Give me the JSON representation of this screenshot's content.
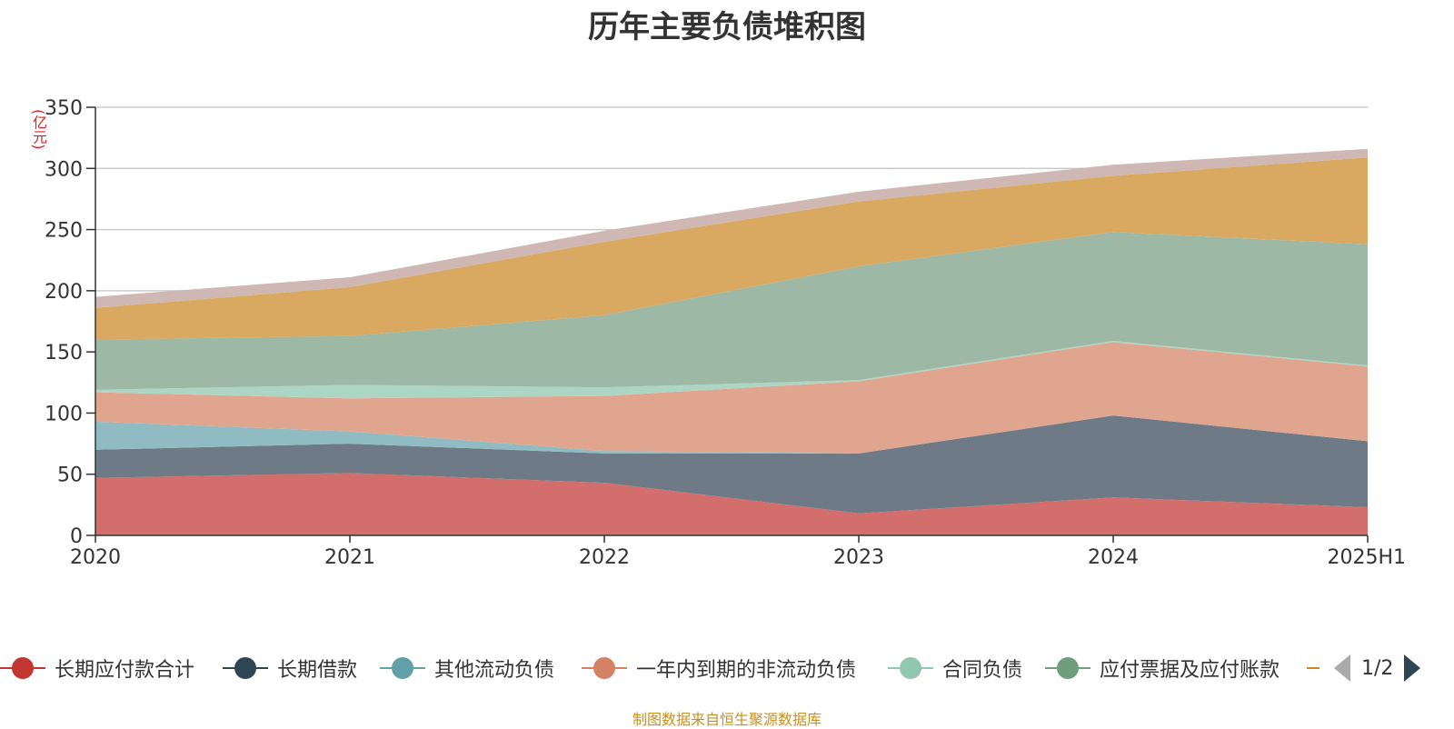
{
  "title": "历年主要负债堆积图",
  "unit_label": "(亿元)",
  "source_note": "制图数据来自恒生聚源数据库",
  "legend": {
    "items": [
      {
        "label": "长期应付款合计",
        "color": "#c23531"
      },
      {
        "label": "长期借款",
        "color": "#2f4554"
      },
      {
        "label": "其他流动负债",
        "color": "#61a0a8"
      },
      {
        "label": "一年内到期的非流动负债",
        "color": "#d48265"
      },
      {
        "label": "合同负债",
        "color": "#91c7ae"
      },
      {
        "label": "应付票据及应付账款",
        "color": "#6e9e7e"
      },
      {
        "label": "",
        "color": "#ca8622"
      }
    ],
    "page_indicator": "1/2"
  },
  "chart_data": {
    "type": "area",
    "stacked": true,
    "title": "历年主要负债堆积图",
    "ylabel": "(亿元)",
    "categories": [
      "2020",
      "2021",
      "2022",
      "2023",
      "2024",
      "2025H1"
    ],
    "ylim": [
      0,
      350
    ],
    "yticks": [
      0,
      50,
      100,
      150,
      200,
      250,
      300,
      350
    ],
    "grid": true,
    "legend_position": "bottom",
    "series": [
      {
        "name": "长期应付款合计",
        "color": "#d26f6d",
        "values": [
          47,
          51,
          43,
          18,
          31,
          23
        ]
      },
      {
        "name": "长期借款",
        "color": "#6e7b86",
        "values": [
          23,
          24,
          24,
          49,
          67,
          54
        ]
      },
      {
        "name": "其他流动负债",
        "color": "#90bbc2",
        "values": [
          23,
          10,
          2,
          0,
          0,
          0
        ]
      },
      {
        "name": "一年内到期的非流动负债",
        "color": "#e0a58f",
        "values": [
          24,
          27,
          45,
          59,
          60,
          61
        ]
      },
      {
        "name": "合同负债",
        "color": "#acd6c3",
        "values": [
          2,
          11,
          7,
          1,
          1,
          1
        ]
      },
      {
        "name": "应付票据及应付账款",
        "color": "#9db9a6",
        "values": [
          41,
          40,
          59,
          93,
          89,
          99
        ]
      },
      {
        "color": "#d9a962",
        "values": [
          26,
          40,
          60,
          53,
          46,
          71
        ]
      },
      {
        "color": "#cfb8b3",
        "values": [
          9,
          8,
          9,
          8,
          9,
          7
        ]
      }
    ]
  }
}
